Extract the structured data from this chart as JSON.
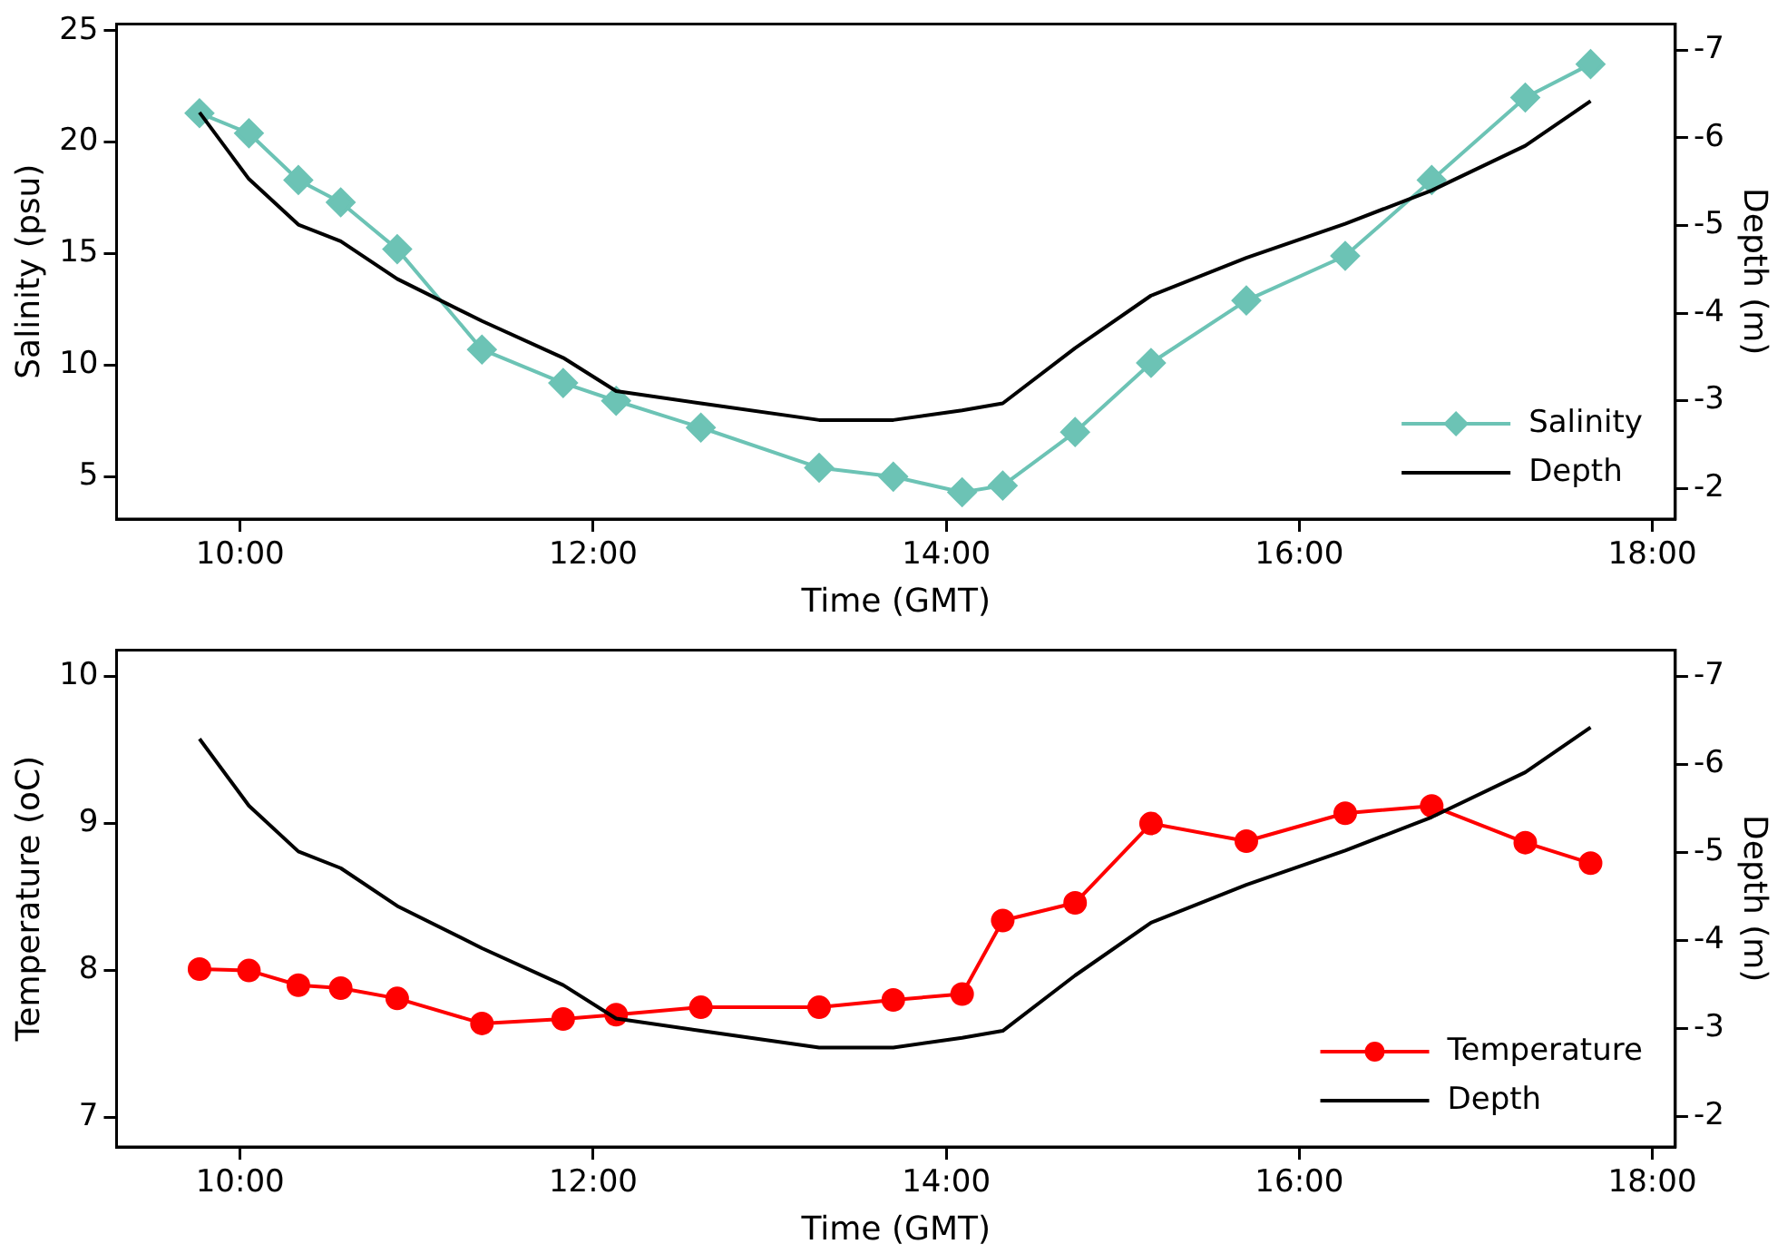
{
  "chart_data": [
    {
      "type": "line",
      "xlabel": "Time (GMT)",
      "ylabel": "Salinity (psu)",
      "y2label": "Depth (m)",
      "x": [
        9.77,
        10.05,
        10.33,
        10.57,
        10.89,
        11.37,
        11.83,
        12.13,
        12.61,
        13.28,
        13.7,
        14.09,
        14.32,
        14.73,
        15.16,
        15.7,
        16.26,
        16.75,
        17.28,
        17.65
      ],
      "series": [
        {
          "name": "Salinity",
          "color": "#6cc3b5",
          "marker": "diamond",
          "values": [
            21.3,
            20.4,
            18.3,
            17.3,
            15.2,
            10.7,
            9.2,
            8.4,
            7.2,
            5.4,
            5.0,
            4.3,
            4.6,
            7.0,
            10.1,
            12.9,
            14.9,
            18.3,
            22.0,
            23.5
          ]
        },
        {
          "name": "Depth",
          "color": "#000000",
          "marker": "none",
          "axis": "y2",
          "values": [
            -6.29,
            -5.53,
            -5.01,
            -4.82,
            -4.39,
            -3.91,
            -3.49,
            -3.11,
            -2.97,
            -2.78,
            -2.78,
            -2.89,
            -2.97,
            -3.6,
            -4.2,
            -4.63,
            -5.02,
            -5.4,
            -5.91,
            -6.42
          ]
        }
      ],
      "xlim": [
        9.3,
        18.13
      ],
      "xticks": [
        {
          "value": 10,
          "label": "10:00"
        },
        {
          "value": 12,
          "label": "12:00"
        },
        {
          "value": 14,
          "label": "14:00"
        },
        {
          "value": 16,
          "label": "16:00"
        },
        {
          "value": 18,
          "label": "18:00"
        }
      ],
      "ylim": [
        3.1,
        25.3
      ],
      "yticks": [
        5,
        10,
        15,
        20,
        25
      ],
      "y2lim": [
        -1.65,
        -7.3
      ],
      "y2ticks": [
        -2,
        -3,
        -4,
        -5,
        -6,
        -7
      ],
      "legend": "bottom right",
      "grid": false
    },
    {
      "type": "line",
      "xlabel": "Time (GMT)",
      "ylabel": "Temperature (oC)",
      "y2label": "Depth (m)",
      "x": [
        9.77,
        10.05,
        10.33,
        10.57,
        10.89,
        11.37,
        11.83,
        12.13,
        12.61,
        13.28,
        13.7,
        14.09,
        14.32,
        14.73,
        15.16,
        15.7,
        16.26,
        16.75,
        17.28,
        17.65
      ],
      "series": [
        {
          "name": "Temperature",
          "color": "#ff0000",
          "marker": "circle",
          "values": [
            8.01,
            8.0,
            7.9,
            7.88,
            7.81,
            7.64,
            7.67,
            7.7,
            7.75,
            7.75,
            7.8,
            7.84,
            8.34,
            8.46,
            9.0,
            8.88,
            9.07,
            9.12,
            8.87,
            8.73
          ]
        },
        {
          "name": "Depth",
          "color": "#000000",
          "marker": "none",
          "axis": "y2",
          "values": [
            -6.29,
            -5.53,
            -5.01,
            -4.82,
            -4.39,
            -3.91,
            -3.49,
            -3.11,
            -2.97,
            -2.78,
            -2.78,
            -2.89,
            -2.97,
            -3.6,
            -4.2,
            -4.63,
            -5.02,
            -5.4,
            -5.91,
            -6.42
          ]
        }
      ],
      "xlim": [
        9.3,
        18.13
      ],
      "xticks": [
        {
          "value": 10,
          "label": "10:00"
        },
        {
          "value": 12,
          "label": "12:00"
        },
        {
          "value": 14,
          "label": "14:00"
        },
        {
          "value": 16,
          "label": "16:00"
        },
        {
          "value": 18,
          "label": "18:00"
        }
      ],
      "ylim": [
        6.8,
        10.18
      ],
      "yticks": [
        7,
        8,
        9,
        10
      ],
      "y2lim": [
        -1.65,
        -7.3
      ],
      "y2ticks": [
        -2,
        -3,
        -4,
        -5,
        -6,
        -7
      ],
      "legend": "bottom right",
      "grid": false
    }
  ]
}
